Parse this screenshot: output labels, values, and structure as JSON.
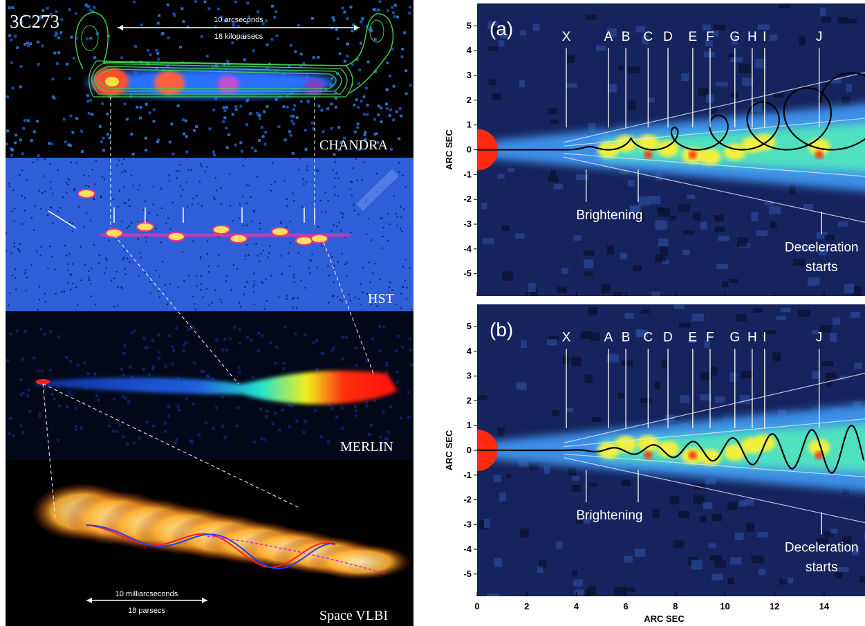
{
  "left": {
    "source": "3C273",
    "scale_top": {
      "angular": "10 arcseconds",
      "physical": "18 kiloparsecs"
    },
    "panels": [
      "CHANDRA",
      "HST",
      "MERLIN",
      "Space VLBI"
    ],
    "scale_bottom": {
      "angular": "10 milliarcseconds",
      "physical": "18 parsecs"
    }
  },
  "right": {
    "y_axis_label": "ARC SEC",
    "x_axis_label": "ARC SEC",
    "ylim": [
      -5.9,
      5.9
    ],
    "yticks": [
      5,
      4,
      3,
      2,
      1,
      0,
      -1,
      -2,
      -3,
      -4,
      -5
    ],
    "xlim": [
      0,
      15.65
    ],
    "xticks": [
      0,
      2,
      4,
      6,
      8,
      10,
      12,
      14
    ],
    "panels": [
      {
        "label": "(a)",
        "features": [
          "X",
          "A",
          "B",
          "C",
          "D",
          "E",
          "F",
          "G",
          "H",
          "I",
          "J"
        ],
        "brightening": "Brightening",
        "deceleration": [
          "Deceleration",
          "starts"
        ]
      },
      {
        "label": "(b)",
        "features": [
          "X",
          "A",
          "B",
          "C",
          "D",
          "E",
          "F",
          "G",
          "H",
          "I",
          "J"
        ],
        "brightening": "Brightening",
        "deceleration": [
          "Deceleration",
          "starts"
        ]
      }
    ]
  }
}
